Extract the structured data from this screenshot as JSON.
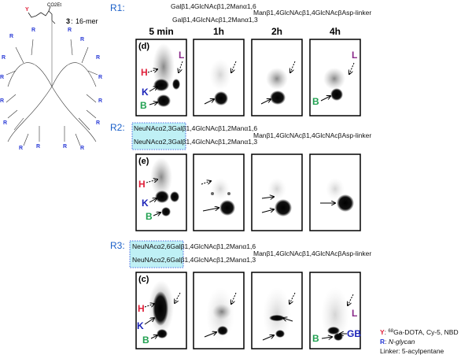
{
  "structure": {
    "compound_number": "3",
    "compound_name": "16-mer",
    "y_label": "Y",
    "r_label": "R",
    "ester_label": "CO2Et"
  },
  "headers": {
    "times": [
      "5 min",
      "1h",
      "2h",
      "4h"
    ]
  },
  "rows": [
    {
      "label": "R1:",
      "seq_top": "Galβ1,4GlcNAcβ1,2Manα1,6",
      "seq_bottom": "Galβ1,4GlcNAcβ1,2Manα1,3",
      "seq_core": "Manβ1,4GlcNAcβ1,4GlcNAcβAsp-linker",
      "panel_label": "(d)",
      "organs_first": [
        "H",
        "K",
        "B",
        "L"
      ],
      "organs_last": [
        "L",
        "B"
      ]
    },
    {
      "label": "R2:",
      "seq_top": "NeuNAcα2,3Galβ1,4GlcNAcβ1,2Manα1,6",
      "seq_bottom": "NeuNAcα2,3Galβ1,4GlcNAcβ1,2Manα1,3",
      "seq_core": "Manβ1,4GlcNAcβ1,4GlcNAcβAsp-linker",
      "panel_label": "(e)",
      "organs_first": [
        "H",
        "K",
        "B"
      ]
    },
    {
      "label": "R3:",
      "seq_top": "NeuNAcα2,6Galβ1,4GlcNAcβ1,2Manα1,6",
      "seq_bottom": "NeuNAcα2,6Galβ1,4GlcNAcβ1,2Manα1,3",
      "seq_core": "Manβ1,4GlcNAcβ1,4GlcNAcβAsp-linker",
      "panel_label": "(c)",
      "organs_first": [
        "H",
        "K",
        "B"
      ],
      "organs_last": [
        "L",
        "GB",
        "B"
      ]
    }
  ],
  "legend": {
    "y_key": "Y",
    "y_text": ": 68Ga-DOTA, Cy-5, NBD",
    "y_sup": "68",
    "y_rest": "Ga-DOTA, Cy-5, NBD",
    "r_key": "R",
    "r_text": "N-glycan",
    "linker": "Linker: 5-acylpentane"
  },
  "colors": {
    "H": "#e0203a",
    "K": "#1a22b8",
    "B": "#20a050",
    "L": "#8a2a8a",
    "row_label": "#1a5fc8",
    "highlight": "#bff0f5"
  }
}
